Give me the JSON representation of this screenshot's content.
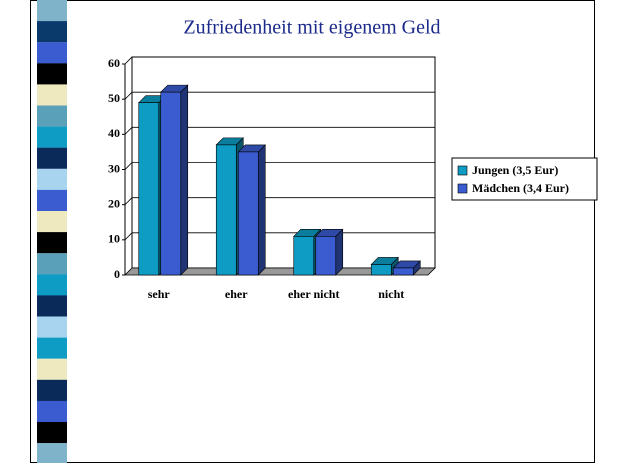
{
  "chart_data": {
    "type": "bar3d",
    "title": "Zufriedenheit mit eigenem Geld",
    "categories": [
      "sehr",
      "eher",
      "eher nicht",
      "nicht"
    ],
    "series": [
      {
        "name": "Jungen (3,5 Eur)",
        "color": "#0e9cc4",
        "values": [
          49,
          37,
          11,
          3
        ]
      },
      {
        "name": "Mädchen (3,4 Eur)",
        "color": "#3a5cd0",
        "values": [
          52,
          35,
          11,
          2
        ]
      }
    ],
    "ylim": [
      0,
      60
    ],
    "yticks": [
      0,
      10,
      20,
      30,
      40,
      50,
      60
    ],
    "grid": true,
    "legend": "right"
  }
}
